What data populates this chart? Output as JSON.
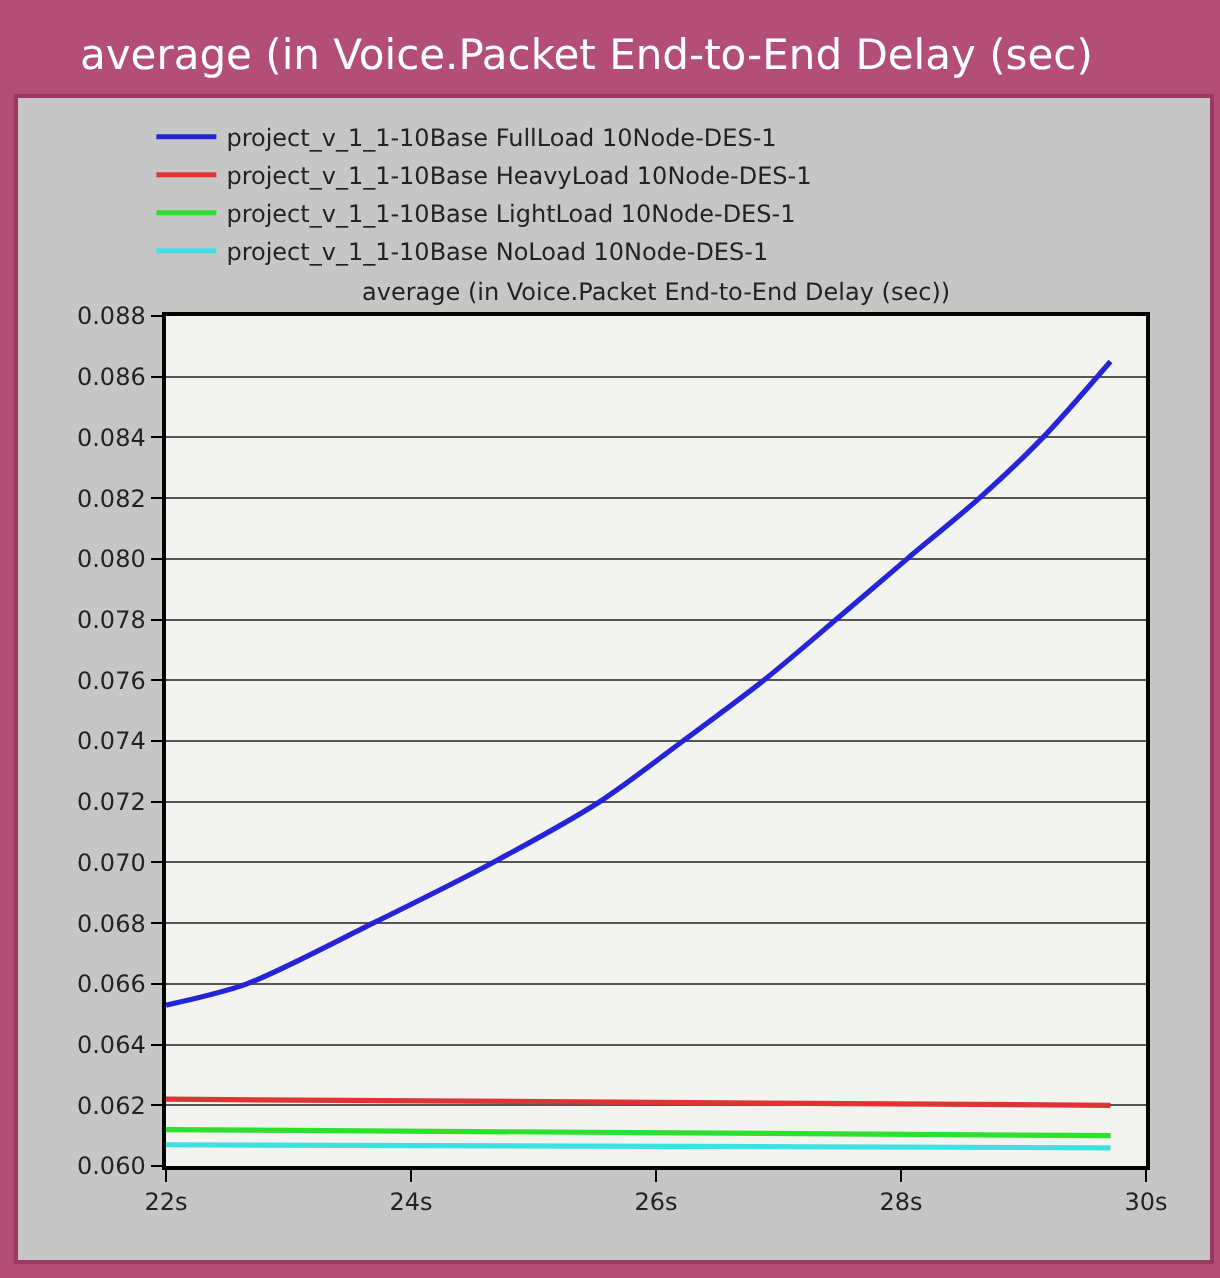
{
  "chart_data": {
    "type": "line",
    "title": "average (in Voice.Packet End-to-End Delay (sec)",
    "subtitle": "average (in Voice.Packet End-to-End Delay (sec))",
    "xlim": [
      22,
      30
    ],
    "xticks": [
      {
        "value": 22,
        "label": "22s"
      },
      {
        "value": 24,
        "label": "24s"
      },
      {
        "value": 26,
        "label": "26s"
      },
      {
        "value": 28,
        "label": "28s"
      },
      {
        "value": 30,
        "label": "30s"
      }
    ],
    "ylim": [
      0.06,
      0.088
    ],
    "yticks": [
      {
        "value": 0.06,
        "label": "0.060"
      },
      {
        "value": 0.062,
        "label": "0.062"
      },
      {
        "value": 0.064,
        "label": "0.064"
      },
      {
        "value": 0.066,
        "label": "0.066"
      },
      {
        "value": 0.068,
        "label": "0.068"
      },
      {
        "value": 0.07,
        "label": "0.070"
      },
      {
        "value": 0.072,
        "label": "0.072"
      },
      {
        "value": 0.074,
        "label": "0.074"
      },
      {
        "value": 0.076,
        "label": "0.076"
      },
      {
        "value": 0.078,
        "label": "0.078"
      },
      {
        "value": 0.08,
        "label": "0.080"
      },
      {
        "value": 0.082,
        "label": "0.082"
      },
      {
        "value": 0.084,
        "label": "0.084"
      },
      {
        "value": 0.086,
        "label": "0.086"
      },
      {
        "value": 0.088,
        "label": "0.088"
      }
    ],
    "grid": "y",
    "legend": "top left",
    "series": [
      {
        "name": "project_v_1_1-10Base FullLoad 10Node-DES-1",
        "color": "#2424d8",
        "x": [
          22,
          22.66,
          23.69,
          24.67,
          25.54,
          26.22,
          26.88,
          27.47,
          28.05,
          28.64,
          29.16,
          29.71
        ],
        "values": [
          0.0653,
          0.066,
          0.068,
          0.07,
          0.072,
          0.074,
          0.076,
          0.078,
          0.08,
          0.082,
          0.084,
          0.0865
        ]
      },
      {
        "name": "project_v_1_1-10Base HeavyLoad 10Node-DES-1",
        "color": "#e03434",
        "x": [
          22,
          29.71
        ],
        "values": [
          0.0622,
          0.062
        ]
      },
      {
        "name": "project_v_1_1-10Base LightLoad 10Node-DES-1",
        "color": "#2ee02e",
        "x": [
          22,
          29.71
        ],
        "values": [
          0.0612,
          0.061
        ]
      },
      {
        "name": "project_v_1_1-10Base NoLoad 10Node-DES-1",
        "color": "#3ee0e0",
        "x": [
          22,
          29.71
        ],
        "values": [
          0.0607,
          0.0606
        ]
      }
    ]
  }
}
